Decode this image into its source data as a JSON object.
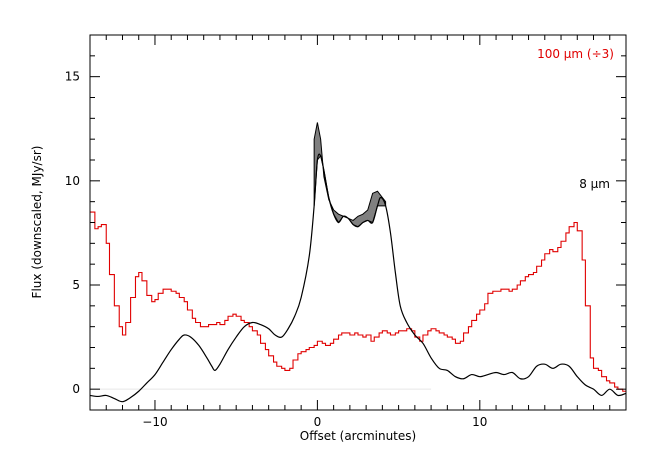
{
  "chart_data": {
    "type": "line",
    "title": "",
    "xlabel": "Offset (arcminutes)",
    "ylabel": "Flux (downscaled, MJy/sr)",
    "xlim": [
      -14,
      19
    ],
    "ylim": [
      -1,
      17
    ],
    "xticks": [
      -10,
      0,
      10
    ],
    "xtick_labels": [
      "−10",
      "0",
      "10"
    ],
    "yticks": [
      0,
      5,
      10,
      15
    ],
    "ytick_labels": [
      "0",
      "5",
      "10",
      "15"
    ],
    "grid": false,
    "colors": {
      "series_8um": "#000000",
      "series_100um": "#e00000",
      "band_fill": "#808080",
      "frame": "#000000"
    },
    "series": [
      {
        "name": "8 μm",
        "label_text": "8 μm",
        "color": "#000000",
        "style": "smooth",
        "x": [
          -14.0,
          -13.5,
          -13.0,
          -12.5,
          -12.0,
          -11.5,
          -11.0,
          -10.5,
          -10.0,
          -9.5,
          -9.0,
          -8.5,
          -8.2,
          -7.8,
          -7.3,
          -6.8,
          -6.5,
          -6.3,
          -6.0,
          -5.5,
          -5.0,
          -4.5,
          -4.0,
          -3.5,
          -3.0,
          -2.6,
          -2.2,
          -1.8,
          -1.4,
          -1.0,
          -0.5,
          -0.2,
          0.0,
          0.2,
          0.4,
          0.7,
          1.0,
          1.3,
          1.6,
          1.9,
          2.2,
          2.5,
          2.8,
          3.1,
          3.4,
          3.7,
          3.9,
          4.2,
          4.5,
          4.8,
          5.1,
          5.5,
          6.0,
          6.5,
          7.0,
          7.5,
          8.0,
          8.5,
          9.0,
          9.5,
          10.0,
          10.5,
          11.0,
          11.5,
          12.0,
          12.5,
          13.0,
          13.5,
          14.0,
          14.5,
          15.0,
          15.5,
          16.0,
          16.5,
          17.0,
          17.5,
          18.0,
          18.5,
          19.0
        ],
        "y": [
          -0.3,
          -0.35,
          -0.3,
          -0.45,
          -0.6,
          -0.4,
          -0.1,
          0.3,
          0.7,
          1.3,
          1.9,
          2.4,
          2.6,
          2.5,
          2.1,
          1.5,
          1.1,
          0.9,
          1.2,
          1.9,
          2.5,
          3.0,
          3.2,
          3.1,
          2.9,
          2.6,
          2.5,
          2.9,
          3.5,
          4.4,
          6.4,
          8.8,
          11.0,
          11.2,
          10.5,
          9.2,
          8.4,
          8.0,
          8.3,
          8.2,
          7.9,
          7.8,
          8.0,
          8.1,
          8.0,
          8.8,
          9.2,
          8.8,
          7.5,
          5.6,
          4.0,
          3.2,
          2.6,
          2.2,
          1.5,
          1.0,
          0.9,
          0.6,
          0.5,
          0.7,
          0.6,
          0.7,
          0.8,
          0.7,
          0.8,
          0.5,
          0.6,
          1.1,
          1.2,
          1.0,
          1.2,
          1.1,
          0.6,
          0.2,
          0.0,
          -0.3,
          0.0,
          -0.3,
          -0.2
        ],
        "band_upper": [
          12.0,
          12.8,
          12.0,
          10.2,
          9.1,
          8.6,
          8.4,
          8.3,
          8.2,
          8.1,
          8.3,
          8.4,
          8.6,
          9.4,
          9.5,
          9.0
        ],
        "band_x": [
          -0.2,
          0.0,
          0.2,
          0.4,
          0.7,
          1.0,
          1.3,
          1.6,
          1.9,
          2.2,
          2.5,
          2.8,
          3.1,
          3.4,
          3.7,
          4.2
        ]
      },
      {
        "name": "100 μm (÷3)",
        "label_text": "100 μm (÷3)",
        "color": "#e00000",
        "style": "step",
        "x": [
          -14.0,
          -13.7,
          -13.5,
          -13.3,
          -13.0,
          -12.8,
          -12.5,
          -12.2,
          -12.0,
          -11.8,
          -11.5,
          -11.2,
          -11.0,
          -10.8,
          -10.5,
          -10.2,
          -10.0,
          -9.8,
          -9.5,
          -9.2,
          -9.0,
          -8.7,
          -8.5,
          -8.2,
          -8.0,
          -7.7,
          -7.5,
          -7.2,
          -7.0,
          -6.7,
          -6.5,
          -6.2,
          -6.0,
          -5.7,
          -5.5,
          -5.2,
          -5.0,
          -4.7,
          -4.5,
          -4.2,
          -4.0,
          -3.7,
          -3.5,
          -3.2,
          -3.0,
          -2.7,
          -2.5,
          -2.2,
          -2.0,
          -1.7,
          -1.5,
          -1.2,
          -1.0,
          -0.7,
          -0.5,
          -0.2,
          0.0,
          0.3,
          0.5,
          0.8,
          1.0,
          1.3,
          1.5,
          1.8,
          2.0,
          2.3,
          2.5,
          2.8,
          3.0,
          3.3,
          3.5,
          3.8,
          4.0,
          4.3,
          4.5,
          4.8,
          5.0,
          5.3,
          5.5,
          5.8,
          6.0,
          6.3,
          6.5,
          6.8,
          7.0,
          7.3,
          7.5,
          7.8,
          8.0,
          8.3,
          8.5,
          8.8,
          9.0,
          9.3,
          9.5,
          9.8,
          10.0,
          10.3,
          10.5,
          10.8,
          11.0,
          11.3,
          11.5,
          11.8,
          12.0,
          12.3,
          12.5,
          12.8,
          13.0,
          13.3,
          13.5,
          13.8,
          14.0,
          14.3,
          14.5,
          14.8,
          15.0,
          15.3,
          15.5,
          15.8,
          16.0,
          16.3,
          16.5,
          16.8,
          17.0,
          17.3,
          17.5,
          17.8,
          18.0,
          18.3,
          18.5,
          18.8,
          19.0
        ],
        "y": [
          8.5,
          7.7,
          7.8,
          7.9,
          7.0,
          5.5,
          4.0,
          3.0,
          2.6,
          3.2,
          4.4,
          5.4,
          5.6,
          5.2,
          4.5,
          4.2,
          4.3,
          4.6,
          4.8,
          4.8,
          4.7,
          4.6,
          4.4,
          4.2,
          3.8,
          3.4,
          3.2,
          3.0,
          3.0,
          3.1,
          3.1,
          3.2,
          3.1,
          3.3,
          3.5,
          3.6,
          3.5,
          3.3,
          3.2,
          3.0,
          2.8,
          2.6,
          2.2,
          1.9,
          1.6,
          1.3,
          1.1,
          1.0,
          0.9,
          1.0,
          1.4,
          1.7,
          1.8,
          1.9,
          2.0,
          2.1,
          2.3,
          2.2,
          2.1,
          2.2,
          2.4,
          2.6,
          2.7,
          2.7,
          2.6,
          2.7,
          2.6,
          2.5,
          2.6,
          2.3,
          2.5,
          2.7,
          2.8,
          2.7,
          2.6,
          2.7,
          2.8,
          2.8,
          2.9,
          2.8,
          2.5,
          2.3,
          2.6,
          2.8,
          2.9,
          2.8,
          2.7,
          2.6,
          2.5,
          2.4,
          2.2,
          2.3,
          2.7,
          3.0,
          3.3,
          3.6,
          3.8,
          4.1,
          4.6,
          4.7,
          4.7,
          4.8,
          4.8,
          4.7,
          4.8,
          5.0,
          5.2,
          5.4,
          5.5,
          5.6,
          5.9,
          6.2,
          6.5,
          6.7,
          6.6,
          6.8,
          7.1,
          7.5,
          7.8,
          8.0,
          7.6,
          6.2,
          4.0,
          1.5,
          1.0,
          0.9,
          0.6,
          0.4,
          0.3,
          0.1,
          0.0,
          -0.1,
          0.0
        ]
      }
    ]
  }
}
